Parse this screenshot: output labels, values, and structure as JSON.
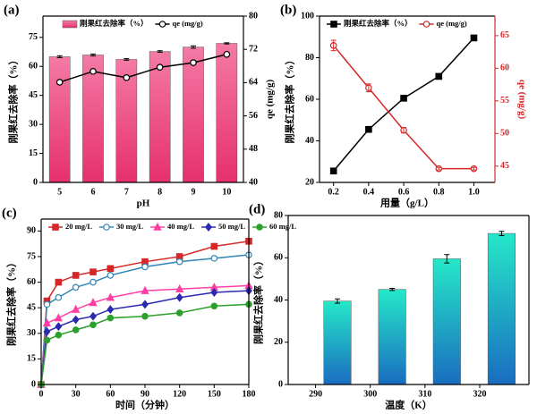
{
  "chart_data": [
    {
      "type": "bar",
      "panel": "(a)",
      "xlabel": "pH",
      "ylabel": "刚果红去除率（%）",
      "y2label": "qe (mg/g)",
      "categories": [
        "5",
        "6",
        "7",
        "8",
        "9",
        "10"
      ],
      "ylim": [
        0,
        86
      ],
      "yticks": [
        0,
        15,
        30,
        45,
        60,
        75
      ],
      "y2lim": [
        40,
        80
      ],
      "y2ticks": [
        40,
        48,
        56,
        64,
        72,
        80
      ],
      "legend": "top",
      "series": [
        {
          "name": "刚果红去除率（%）",
          "type": "bar",
          "gradient": [
            "#f47aa6",
            "#e6306c"
          ],
          "values": [
            65,
            65.9,
            63.6,
            67.7,
            70,
            71.9
          ],
          "errors": [
            0.5,
            0.5,
            0.4,
            0.4,
            0.6,
            0.3
          ]
        },
        {
          "name": "qe (mg/g)",
          "type": "line",
          "axis": "y2",
          "color": "#000000",
          "marker": "circle",
          "marker_fill": "#ffffff",
          "values": [
            64.1,
            66.7,
            65.2,
            67.7,
            68.8,
            70.8
          ]
        }
      ]
    },
    {
      "type": "line",
      "panel": "(b)",
      "xlabel": "用量（g/L）",
      "ylabel": "刚果红去除率（%）",
      "y2label": "qe (mg/g)",
      "x": [
        0.2,
        0.4,
        0.6,
        0.8,
        1.0
      ],
      "xlim": [
        0.12,
        1.12
      ],
      "xticks": [
        0.2,
        0.4,
        0.6,
        0.8,
        {
          "value": 1,
          "label": "1.0"
        }
      ],
      "ylim": [
        20,
        100
      ],
      "yticks": [
        20,
        40,
        60,
        80,
        100
      ],
      "y2lim": [
        42.5,
        68
      ],
      "y2ticks": [
        45,
        50,
        55,
        60,
        65
      ],
      "y2color": "#d62728",
      "legend": "top",
      "series": [
        {
          "name": "刚果红去除率（%）",
          "type": "line",
          "color": "#000000",
          "marker": "square",
          "values": [
            25.5,
            45.5,
            60.5,
            71,
            89.5
          ]
        },
        {
          "name": "qe (mg/g)",
          "type": "line",
          "axis": "y2",
          "color": "#d62728",
          "marker": "circle",
          "marker_fill": "#ffffff",
          "values": [
            63.5,
            57,
            50.5,
            44.6,
            44.6
          ],
          "errors": [
            0.8,
            0.6,
            0.4,
            0.2,
            0.2
          ]
        }
      ]
    },
    {
      "type": "line",
      "panel": "(c)",
      "xlabel": "时间（分钟）",
      "ylabel": "刚果红去除率（%）",
      "x": [
        0,
        5,
        15,
        30,
        45,
        60,
        90,
        120,
        150,
        180
      ],
      "xlim": [
        0,
        180
      ],
      "xticks": [
        0,
        30,
        60,
        90,
        120,
        150,
        180
      ],
      "ylim": [
        0,
        97
      ],
      "yticks": [
        0,
        15,
        30,
        45,
        60,
        75,
        90
      ],
      "legend": "top",
      "series": [
        {
          "name": "20 mg/L",
          "type": "line",
          "color": "#d62728",
          "marker": "square",
          "values": [
            0,
            49,
            60,
            64,
            66,
            68,
            72,
            75,
            81,
            84
          ]
        },
        {
          "name": "30 mg/L",
          "type": "line",
          "color": "#2f86b5",
          "marker": "circle",
          "marker_fill": "#ffffff",
          "values": [
            0,
            47,
            51,
            57,
            60,
            64,
            69,
            72,
            74,
            76
          ]
        },
        {
          "name": "40 mg/L",
          "type": "line",
          "color": "#ff3fa4",
          "marker": "triangle",
          "values": [
            0,
            36,
            39,
            44,
            48,
            51,
            55,
            56,
            57,
            58
          ]
        },
        {
          "name": "50 mg/L",
          "type": "line",
          "color": "#2a2ab0",
          "marker": "diamond",
          "values": [
            0,
            31,
            34,
            38,
            40,
            44,
            47,
            51,
            54,
            55
          ]
        },
        {
          "name": "60 mg/L",
          "type": "line",
          "color": "#2ca02c",
          "marker": "circle",
          "values": [
            0,
            26,
            29,
            32,
            35,
            39,
            40,
            42,
            46,
            47
          ]
        }
      ]
    },
    {
      "type": "bar",
      "panel": "(d)",
      "xlabel": "温度（K）",
      "ylabel": "刚果红去除率（%）",
      "x": [
        294,
        304,
        314,
        324
      ],
      "xlim": [
        285,
        329
      ],
      "xticks": [
        290,
        300,
        310,
        320
      ],
      "ylim": [
        0,
        80
      ],
      "yticks": [
        0,
        20,
        40,
        60,
        80
      ],
      "series": [
        {
          "type": "bar",
          "gradient": [
            "#25e8c8",
            "#1a6cc0"
          ],
          "values": [
            39.5,
            45,
            59.5,
            71.5
          ],
          "errors": [
            1,
            0.5,
            2,
            1
          ]
        }
      ]
    }
  ]
}
